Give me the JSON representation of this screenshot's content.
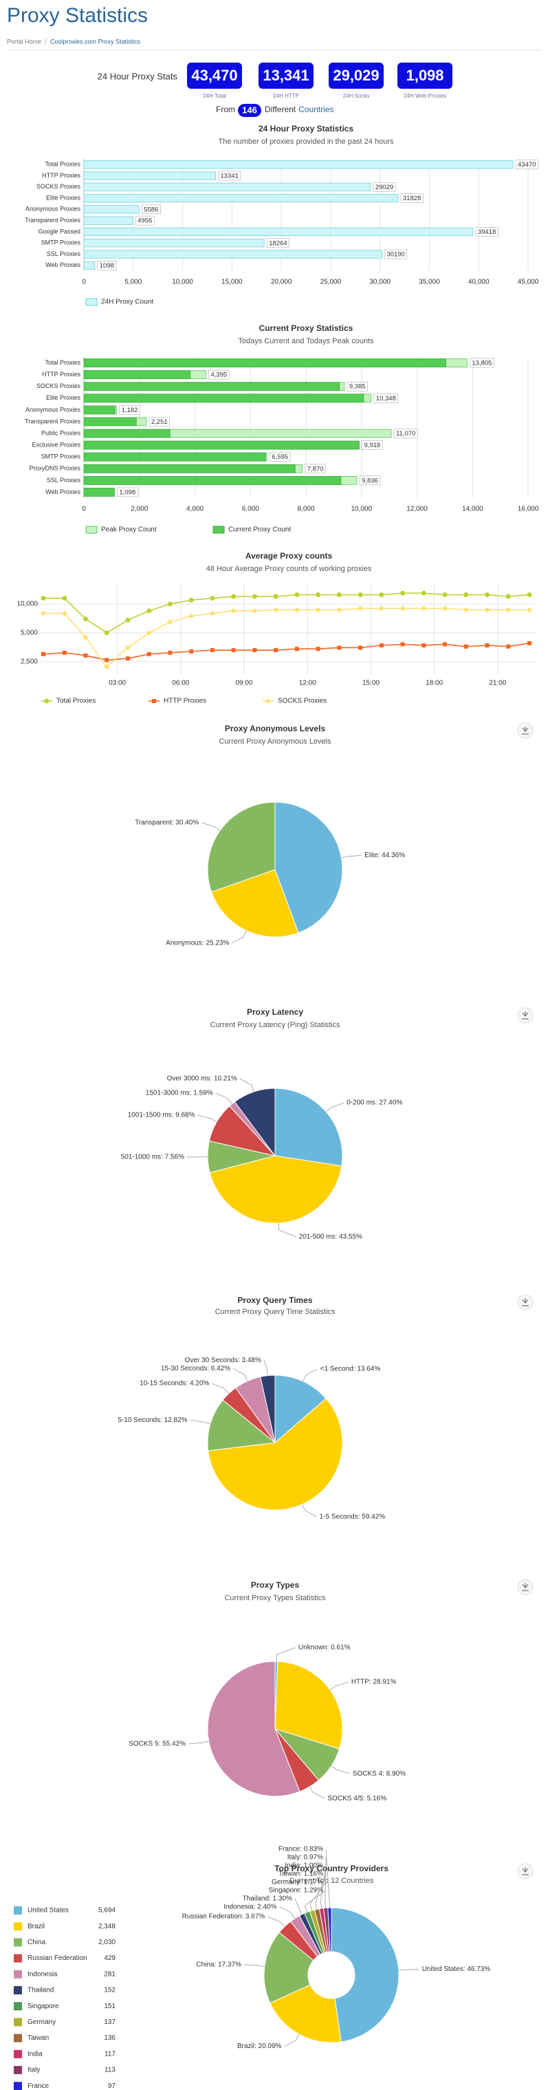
{
  "header": {
    "title": "Proxy Statistics",
    "breadcrumb": [
      "Portal Home",
      "Coolproxies.com Proxy Statistics"
    ]
  },
  "stats": {
    "label": "24 Hour Proxy Stats",
    "boxes": [
      {
        "value": "43,470",
        "label": "24H Total"
      },
      {
        "value": "13,341",
        "label": "24H HTTP"
      },
      {
        "value": "29,029",
        "label": "24H Socks"
      },
      {
        "value": "1,098",
        "label": "24H Web Proxies"
      }
    ],
    "from": "From",
    "country_count": "146",
    "different": "Different",
    "countries": "Countries"
  },
  "chart_data": [
    {
      "type": "bar",
      "orientation": "horizontal",
      "title": "24 Hour Proxy Statistics",
      "subtitle": "The number of proxies provided in the past 24 hours",
      "categories": [
        "Total Proxies",
        "HTTP Proxies",
        "SOCKS Proxies",
        "Elite Proxies",
        "Anonymous Proxies",
        "Transparent Proxies",
        "Google Passed",
        "SMTP Proxies",
        "SSL Proxies",
        "Web Proxies"
      ],
      "series": [
        {
          "name": "24H Proxy Count",
          "color": "#ccf6fa",
          "border_color": "#6fd0db",
          "values": [
            43470,
            13341,
            29029,
            31828,
            5586,
            4956,
            39418,
            18264,
            30190,
            1098
          ]
        }
      ],
      "xlim": [
        0,
        45000
      ],
      "xticks": [
        0,
        {
          "value": 5000,
          "label": "5,000"
        },
        {
          "value": 10000,
          "label": "10,000"
        },
        {
          "value": 15000,
          "label": "15,000"
        },
        {
          "value": 20000,
          "label": "20,000"
        },
        {
          "value": 25000,
          "label": "25,000"
        },
        {
          "value": 30000,
          "label": "30,000"
        },
        {
          "value": 35000,
          "label": "35,000"
        },
        {
          "value": 40000,
          "label": "40,000"
        },
        {
          "value": 45000,
          "label": "45,000"
        }
      ],
      "grid": true
    },
    {
      "type": "bar",
      "orientation": "horizontal",
      "title": "Current Proxy Statistics",
      "subtitle": "Todays Current and Todays Peak counts",
      "categories": [
        "Total Proxies",
        "HTTP Proxies",
        "SOCKS Proxies",
        "Elite Proxies",
        "Anonymous Proxies",
        "Transparent Proxies",
        "Public Proxies",
        "Exclusive Proxies",
        "SMTP Proxies",
        "ProxyDNS Proxies",
        "SSL Proxies",
        "Web Proxies"
      ],
      "series": [
        {
          "name": "Peak Proxy Count",
          "color": "#c6f2c0",
          "border_color": "#5cc85c",
          "values": [
            13805,
            4395,
            9385,
            10348,
            1182,
            2251,
            11070,
            9918,
            6595,
            7870,
            9836,
            1098
          ],
          "value_labels": [
            "13,805",
            "4,395",
            "9,385",
            "10,348",
            "1,182",
            "2,251",
            "11,070",
            "9,918",
            "6,595",
            "7,870",
            "9,836",
            "1,098"
          ]
        },
        {
          "name": "Current Proxy Count",
          "color": "#55cc55",
          "border_color": "#3fae3f",
          "values": [
            13040,
            3830,
            9210,
            10080,
            1120,
            1890,
            3100,
            9918,
            6545,
            7610,
            9260,
            1098
          ]
        }
      ],
      "xlim": [
        0,
        16000
      ],
      "xticks": [
        0,
        {
          "value": 2000,
          "label": "2,000"
        },
        {
          "value": 4000,
          "label": "4,000"
        },
        {
          "value": 6000,
          "label": "6,000"
        },
        {
          "value": 8000,
          "label": "8,000"
        },
        {
          "value": 10000,
          "label": "10,000"
        },
        {
          "value": 12000,
          "label": "12,000"
        },
        {
          "value": 14000,
          "label": "14,000"
        },
        {
          "value": 16000,
          "label": "16,000"
        }
      ],
      "grid": true
    },
    {
      "type": "line",
      "title": "Average Proxy counts",
      "subtitle": "48 Hour Average Proxy counts of working proxies",
      "x": [
        -0.5,
        0.5,
        1.5,
        2.5,
        3.5,
        4.5,
        5.5,
        6.5,
        7.5,
        8.5,
        9.5,
        10.5,
        11.5,
        12.5,
        13.5,
        14.5,
        15.5,
        16.5,
        17.5,
        18.5,
        19.5,
        20.5,
        21.5,
        22.5
      ],
      "series": [
        {
          "name": "Total Proxies",
          "color": "#b8d430",
          "marker": "circle",
          "values": [
            11500,
            11500,
            7000,
            5000,
            6800,
            8500,
            10000,
            11000,
            11500,
            12000,
            12000,
            12000,
            12500,
            12500,
            12500,
            12500,
            12500,
            13000,
            13000,
            12500,
            12500,
            12500,
            12000,
            12500
          ]
        },
        {
          "name": "HTTP Proxies",
          "color": "#f26522",
          "marker": "square",
          "values": [
            3000,
            3100,
            2900,
            2600,
            2700,
            3000,
            3100,
            3200,
            3300,
            3300,
            3300,
            3300,
            3400,
            3400,
            3500,
            3500,
            3700,
            3800,
            3700,
            3800,
            3600,
            3700,
            3600,
            3900
          ]
        },
        {
          "name": "SOCKS Proxies",
          "color": "#ffe070",
          "marker": "diamond",
          "values": [
            8000,
            8000,
            4500,
            2200,
            3500,
            5000,
            6500,
            7500,
            8000,
            8500,
            8500,
            8700,
            8700,
            8700,
            8700,
            9000,
            9000,
            9000,
            9000,
            9000,
            8700,
            8700,
            8700,
            8700
          ]
        }
      ],
      "xlim": [
        -0.5,
        22.5
      ],
      "xticks": [
        {
          "value": 3,
          "label": "03:00"
        },
        {
          "value": 6,
          "label": "06:00"
        },
        {
          "value": 9,
          "label": "09:00"
        },
        {
          "value": 12,
          "label": "12:00"
        },
        {
          "value": 15,
          "label": "15:00"
        },
        {
          "value": 18,
          "label": "18:00"
        },
        {
          "value": 21,
          "label": "21:00"
        }
      ],
      "ylim": [
        1850,
        15900
      ],
      "yticks": [
        {
          "value": 2500,
          "label": "2,500"
        },
        {
          "value": 5000,
          "label": "5,000"
        },
        {
          "value": 10000,
          "label": "10,000"
        }
      ],
      "log_scale": true,
      "grid": true
    },
    {
      "type": "pie",
      "title": "Proxy Anonymous Levels",
      "subtitle": "Current Proxy Anonymous Levels",
      "values": [
        44.36,
        25.23,
        30.4
      ],
      "value_labels": [
        "Elite: 44.36%",
        "Anonymous: 25.23%",
        "Transparent: 30.40%"
      ],
      "colors": [
        "#6ab7dc",
        "#ffd000",
        "#86b95f"
      ]
    },
    {
      "type": "pie",
      "title": "Proxy Latency",
      "subtitle": "Current Proxy Latency (Ping) Statistics",
      "values": [
        27.4,
        43.55,
        7.56,
        9.68,
        1.59,
        10.21
      ],
      "value_labels": [
        "0-200 ms: 27.40%",
        "201-500 ms: 43.55%",
        "501-1000 ms: 7.56%",
        "1001-1500 ms: 9.68%",
        "1501-3000 ms: 1.59%",
        "Over 3000 ms: 10.21%"
      ],
      "colors": [
        "#6ab7dc",
        "#ffd000",
        "#86b95f",
        "#d04848",
        "#cc88aa",
        "#2f3f6f"
      ]
    },
    {
      "type": "pie",
      "title": "Proxy Query Times",
      "subtitle": "Current Proxy Query Time Statistics",
      "values": [
        13.64,
        59.42,
        12.82,
        4.2,
        6.42,
        3.48
      ],
      "value_labels": [
        "<1 Second: 13.64%",
        "1-5 Seconds: 59.42%",
        "5-10 Seconds: 12.82%",
        "10-15 Seconds: 4.20%",
        "15-30 Seconds: 6.42%",
        "Over 30 Seconds: 3.48%"
      ],
      "colors": [
        "#6ab7dc",
        "#ffd000",
        "#86b95f",
        "#d04848",
        "#cc88aa",
        "#2f3f6f"
      ]
    },
    {
      "type": "pie",
      "title": "Proxy Types",
      "subtitle": "Current Proxy Types Statistics",
      "values": [
        0.61,
        28.91,
        8.9,
        5.16,
        55.42
      ],
      "value_labels": [
        "Unknown: 0.61%",
        "HTTP: 28.91%",
        "SOCKS 4: 8.90%",
        "SOCKS 4/5: 5.16%",
        "SOCKS 5: 55.42%"
      ],
      "colors": [
        "#6ab7dc",
        "#ffd000",
        "#86b95f",
        "#d04848",
        "#cc88aa"
      ]
    },
    {
      "type": "donut",
      "title": "Top Proxy Country Providers",
      "subtitle": "Current Top 12 Countries",
      "categories": [
        "United States",
        "Brazil",
        "China",
        "Russian Federation",
        "Indonesia",
        "Thailand",
        "Singapore",
        "Germany",
        "Taiwan",
        "India",
        "Italy",
        "France"
      ],
      "values": [
        46.73,
        20.09,
        17.37,
        3.67,
        2.4,
        1.3,
        1.29,
        1.17,
        1.16,
        1.0,
        0.97,
        0.83
      ],
      "value_labels": [
        "United States: 46.73%",
        "Brazil: 20.09%",
        "China: 17.37%",
        "Russian Federation: 3.67%",
        "Indonesia: 2.40%",
        "Thailand: 1.30%",
        "Singapore: 1.29%",
        "Germany: 1.17%",
        "Taiwan: 1.16%",
        "India: 1.00%",
        "Italy: 0.97%",
        "France: 0.83%"
      ],
      "counts": [
        "5,694",
        "2,348",
        "2,030",
        "429",
        "281",
        "152",
        "151",
        "137",
        "136",
        "117",
        "113",
        "97"
      ],
      "colors": [
        "#6ab7dc",
        "#ffd000",
        "#86b95f",
        "#d04848",
        "#cc88aa",
        "#2f3f6f",
        "#4f9a5a",
        "#b0b030",
        "#a06a3a",
        "#cc3366",
        "#8a3a6a",
        "#2222dd"
      ]
    }
  ]
}
